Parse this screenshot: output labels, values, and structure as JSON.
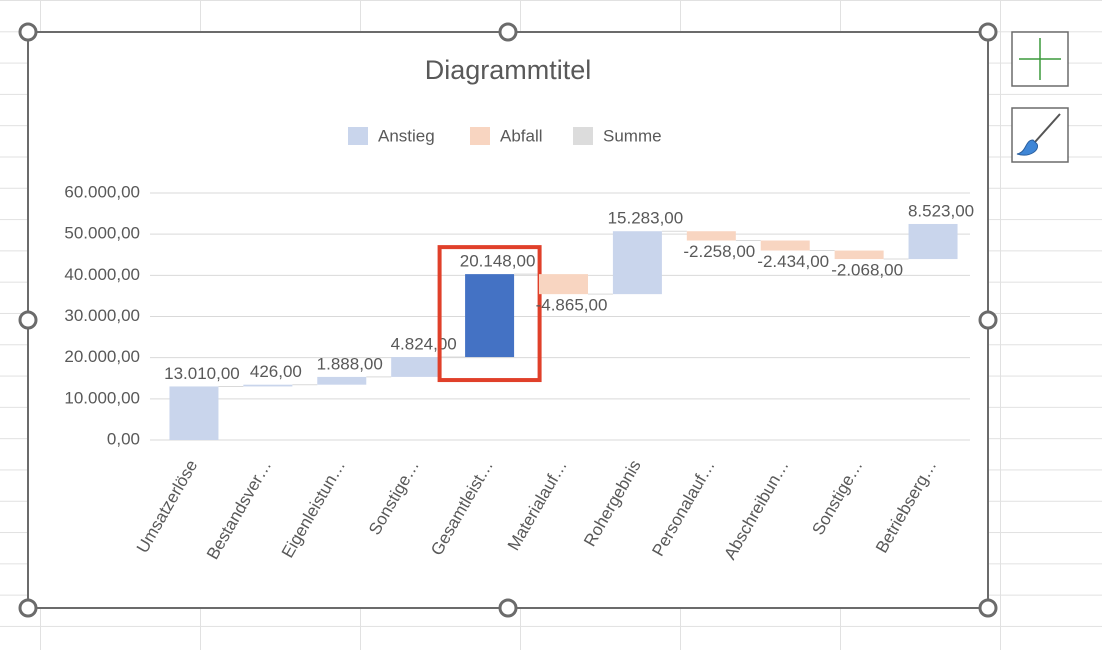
{
  "chart_data": {
    "type": "waterfall",
    "title": "Diagrammtitel",
    "categories": [
      "Umsatzerlöse",
      "Bestandsver…",
      "Eigenleistun…",
      "Sonstige…",
      "Gesamtleist…",
      "Materialauf…",
      "Rohergebnis",
      "Personalauf…",
      "Abschreibun…",
      "Sonstige…",
      "Betriebserg…"
    ],
    "values": [
      13010,
      426,
      1888,
      4824,
      20148,
      -4865,
      15283,
      -2258,
      -2434,
      -2068,
      8523
    ],
    "value_labels": [
      "13.010,00",
      "426,00",
      "1.888,00",
      "4.824,00",
      "20.148,00",
      "-4.865,00",
      "15.283,00",
      "-2.258,00",
      "-2.434,00",
      "-2.068,00",
      "8.523,00"
    ],
    "legend": [
      {
        "name": "Anstieg",
        "color": "#c9d5ec"
      },
      {
        "name": "Abfall",
        "color": "#f8d5c1"
      },
      {
        "name": "Summe",
        "color": "#dcdcdc"
      }
    ],
    "selected_index": 4,
    "selected_color": "#4472c4",
    "ylim": [
      0,
      60000
    ],
    "yticks": [
      {
        "value": 0,
        "label": "0,00"
      },
      {
        "value": 10000,
        "label": "10.000,00"
      },
      {
        "value": 20000,
        "label": "20.000,00"
      },
      {
        "value": 30000,
        "label": "30.000,00"
      },
      {
        "value": 40000,
        "label": "40.000,00"
      },
      {
        "value": 50000,
        "label": "50.000,00"
      },
      {
        "value": 60000,
        "label": "60.000,00"
      }
    ],
    "grid": true
  }
}
